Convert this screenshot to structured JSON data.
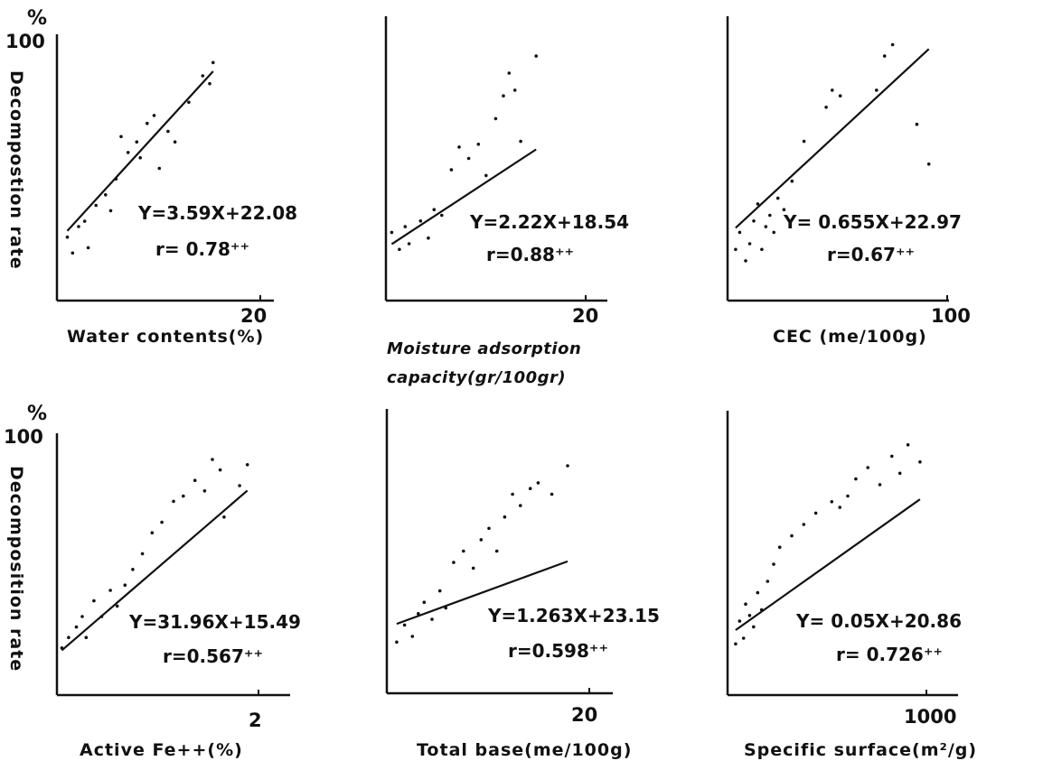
{
  "figure": {
    "y_axis_label": "Decompostion rate",
    "y_axis_label_lower": "Decomposition rate",
    "y_unit": "%",
    "y_top_tick": "100"
  },
  "chart_data": [
    {
      "type": "scatter",
      "xlabel": "Water contents(%)",
      "ylabel": "Decompostion rate",
      "x_tick_labels": [
        "20"
      ],
      "y_tick_labels": [
        "100"
      ],
      "y_unit": "%",
      "xlim": [
        0,
        25
      ],
      "ylim": [
        0,
        100
      ],
      "equation": "Y=3.59X+22.08",
      "r_label": "r= 0.78⁺⁺",
      "line": {
        "slope": 3.59,
        "intercept": 22.08
      },
      "points": [
        {
          "x": 1.2,
          "y": 24
        },
        {
          "x": 1.8,
          "y": 18
        },
        {
          "x": 2.5,
          "y": 28
        },
        {
          "x": 3.2,
          "y": 30
        },
        {
          "x": 3.6,
          "y": 20
        },
        {
          "x": 4.5,
          "y": 36
        },
        {
          "x": 5.6,
          "y": 40
        },
        {
          "x": 6.2,
          "y": 34
        },
        {
          "x": 6.8,
          "y": 46
        },
        {
          "x": 7.4,
          "y": 62
        },
        {
          "x": 8.2,
          "y": 56
        },
        {
          "x": 9.2,
          "y": 60
        },
        {
          "x": 9.6,
          "y": 54
        },
        {
          "x": 10.4,
          "y": 67
        },
        {
          "x": 11.2,
          "y": 70
        },
        {
          "x": 11.8,
          "y": 50
        },
        {
          "x": 12.8,
          "y": 64
        },
        {
          "x": 13.6,
          "y": 60
        },
        {
          "x": 15.2,
          "y": 75
        },
        {
          "x": 16.8,
          "y": 85
        },
        {
          "x": 17.6,
          "y": 82
        },
        {
          "x": 18.0,
          "y": 90
        }
      ]
    },
    {
      "type": "scatter",
      "xlabel": "Moisture adsorption capacity(gr/100gr)",
      "xlabel_lines": [
        "Moisture adsorption",
        "capacity(gr/100gr)"
      ],
      "x_tick_labels": [
        "20"
      ],
      "xlim": [
        0,
        23
      ],
      "ylim": [
        0,
        100
      ],
      "equation": "Y=2.22X+18.54",
      "r_label": "r=0.88⁺⁺",
      "line": {
        "slope": 2.22,
        "intercept": 18.54
      },
      "points": [
        {
          "x": 0.6,
          "y": 24
        },
        {
          "x": 1.4,
          "y": 18
        },
        {
          "x": 2.0,
          "y": 26
        },
        {
          "x": 2.4,
          "y": 20
        },
        {
          "x": 3.6,
          "y": 28
        },
        {
          "x": 4.4,
          "y": 22
        },
        {
          "x": 5.0,
          "y": 32
        },
        {
          "x": 5.8,
          "y": 30
        },
        {
          "x": 6.8,
          "y": 46
        },
        {
          "x": 7.6,
          "y": 54
        },
        {
          "x": 8.6,
          "y": 50
        },
        {
          "x": 9.6,
          "y": 55
        },
        {
          "x": 10.4,
          "y": 44
        },
        {
          "x": 11.4,
          "y": 64
        },
        {
          "x": 12.2,
          "y": 72
        },
        {
          "x": 12.8,
          "y": 80
        },
        {
          "x": 13.4,
          "y": 74
        },
        {
          "x": 14.0,
          "y": 56
        },
        {
          "x": 15.6,
          "y": 86
        }
      ]
    },
    {
      "type": "scatter",
      "xlabel": "CEC (me/100g)",
      "x_tick_labels": [
        "100"
      ],
      "xlim": [
        0,
        110
      ],
      "ylim": [
        0,
        100
      ],
      "equation": "Y= 0.655X+22.97",
      "r_label": "r=0.67⁺⁺",
      "line": {
        "slope": 0.655,
        "intercept": 22.97
      },
      "points": [
        {
          "x": 4,
          "y": 18
        },
        {
          "x": 6,
          "y": 24
        },
        {
          "x": 9,
          "y": 14
        },
        {
          "x": 11,
          "y": 20
        },
        {
          "x": 13,
          "y": 28
        },
        {
          "x": 15,
          "y": 34
        },
        {
          "x": 17,
          "y": 18
        },
        {
          "x": 19,
          "y": 26
        },
        {
          "x": 21,
          "y": 30
        },
        {
          "x": 23,
          "y": 24
        },
        {
          "x": 25,
          "y": 36
        },
        {
          "x": 28,
          "y": 32
        },
        {
          "x": 32,
          "y": 42
        },
        {
          "x": 38,
          "y": 56
        },
        {
          "x": 49,
          "y": 68
        },
        {
          "x": 52,
          "y": 74
        },
        {
          "x": 56,
          "y": 72
        },
        {
          "x": 74,
          "y": 74
        },
        {
          "x": 78,
          "y": 86
        },
        {
          "x": 82,
          "y": 90
        },
        {
          "x": 94,
          "y": 62
        },
        {
          "x": 100,
          "y": 48
        }
      ]
    },
    {
      "type": "scatter",
      "xlabel": "Active Fe++(%)",
      "ylabel": "Decomposition rate",
      "x_tick_labels": [
        "2"
      ],
      "y_tick_labels": [
        "100"
      ],
      "y_unit": "%",
      "xlim": [
        0,
        2.4
      ],
      "ylim": [
        0,
        100
      ],
      "equation": "Y=31.96X+15.49",
      "r_label": "r=0.567⁺⁺",
      "line": {
        "slope": 31.96,
        "intercept": 15.49
      },
      "points": [
        {
          "x": 0.05,
          "y": 18
        },
        {
          "x": 0.12,
          "y": 22
        },
        {
          "x": 0.2,
          "y": 26
        },
        {
          "x": 0.26,
          "y": 30
        },
        {
          "x": 0.3,
          "y": 22
        },
        {
          "x": 0.38,
          "y": 36
        },
        {
          "x": 0.46,
          "y": 30
        },
        {
          "x": 0.55,
          "y": 40
        },
        {
          "x": 0.62,
          "y": 34
        },
        {
          "x": 0.7,
          "y": 42
        },
        {
          "x": 0.78,
          "y": 48
        },
        {
          "x": 0.88,
          "y": 54
        },
        {
          "x": 0.98,
          "y": 62
        },
        {
          "x": 1.08,
          "y": 66
        },
        {
          "x": 1.2,
          "y": 74
        },
        {
          "x": 1.3,
          "y": 76
        },
        {
          "x": 1.42,
          "y": 82
        },
        {
          "x": 1.52,
          "y": 78
        },
        {
          "x": 1.6,
          "y": 90
        },
        {
          "x": 1.68,
          "y": 86
        },
        {
          "x": 1.72,
          "y": 68
        },
        {
          "x": 1.88,
          "y": 80
        },
        {
          "x": 1.96,
          "y": 88
        }
      ]
    },
    {
      "type": "scatter",
      "xlabel": "Total base(me/100g)",
      "x_tick_labels": [
        "20"
      ],
      "xlim": [
        0,
        23
      ],
      "ylim": [
        0,
        100
      ],
      "equation": "Y=1.263X+23.15",
      "r_label": "r=0.598⁺⁺",
      "line": {
        "slope": 1.263,
        "intercept": 23.15
      },
      "points": [
        {
          "x": 1.0,
          "y": 18
        },
        {
          "x": 1.8,
          "y": 24
        },
        {
          "x": 2.6,
          "y": 20
        },
        {
          "x": 3.2,
          "y": 28
        },
        {
          "x": 3.8,
          "y": 32
        },
        {
          "x": 4.6,
          "y": 26
        },
        {
          "x": 5.4,
          "y": 36
        },
        {
          "x": 6.0,
          "y": 30
        },
        {
          "x": 6.8,
          "y": 46
        },
        {
          "x": 7.8,
          "y": 50
        },
        {
          "x": 8.8,
          "y": 44
        },
        {
          "x": 9.6,
          "y": 54
        },
        {
          "x": 10.4,
          "y": 58
        },
        {
          "x": 11.2,
          "y": 50
        },
        {
          "x": 12.0,
          "y": 62
        },
        {
          "x": 12.8,
          "y": 70
        },
        {
          "x": 13.6,
          "y": 66
        },
        {
          "x": 14.6,
          "y": 72
        },
        {
          "x": 15.4,
          "y": 74
        },
        {
          "x": 16.8,
          "y": 70
        },
        {
          "x": 18.4,
          "y": 80
        }
      ]
    },
    {
      "type": "scatter",
      "xlabel": "Specific surface(m²/g)",
      "x_tick_labels": [
        "1000"
      ],
      "xlim": [
        0,
        1150
      ],
      "ylim": [
        0,
        100
      ],
      "equation": "Y= 0.05X+20.86",
      "r_label": "r= 0.726⁺⁺",
      "line": {
        "slope": 0.05,
        "intercept": 20.86
      },
      "points": [
        {
          "x": 40,
          "y": 18
        },
        {
          "x": 60,
          "y": 26
        },
        {
          "x": 80,
          "y": 20
        },
        {
          "x": 90,
          "y": 32
        },
        {
          "x": 110,
          "y": 28
        },
        {
          "x": 130,
          "y": 24
        },
        {
          "x": 150,
          "y": 36
        },
        {
          "x": 170,
          "y": 30
        },
        {
          "x": 200,
          "y": 40
        },
        {
          "x": 230,
          "y": 46
        },
        {
          "x": 260,
          "y": 52
        },
        {
          "x": 320,
          "y": 56
        },
        {
          "x": 380,
          "y": 60
        },
        {
          "x": 440,
          "y": 64
        },
        {
          "x": 520,
          "y": 68
        },
        {
          "x": 560,
          "y": 66
        },
        {
          "x": 600,
          "y": 70
        },
        {
          "x": 640,
          "y": 76
        },
        {
          "x": 700,
          "y": 80
        },
        {
          "x": 760,
          "y": 74
        },
        {
          "x": 820,
          "y": 84
        },
        {
          "x": 860,
          "y": 78
        },
        {
          "x": 900,
          "y": 88
        },
        {
          "x": 960,
          "y": 82
        }
      ]
    }
  ]
}
